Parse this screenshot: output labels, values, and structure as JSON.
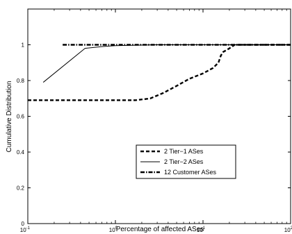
{
  "chart_data": {
    "type": "line",
    "xlabel": "Percentage of affected ASes",
    "ylabel": "Cumulative Distribution",
    "xscale": "log",
    "xlim": [
      0.1,
      100
    ],
    "ylim": [
      0,
      1.2
    ],
    "x_ticks": [
      {
        "value": 0.1,
        "base": "10",
        "exp": "-1"
      },
      {
        "value": 1,
        "base": "10",
        "exp": "0"
      },
      {
        "value": 10,
        "base": "10",
        "exp": "1"
      },
      {
        "value": 100,
        "base": "10",
        "exp": "2"
      }
    ],
    "y_ticks": [
      {
        "value": 0,
        "label": "0"
      },
      {
        "value": 0.2,
        "label": "0.2"
      },
      {
        "value": 0.4,
        "label": "0.4"
      },
      {
        "value": 0.6,
        "label": "0.6"
      },
      {
        "value": 0.8,
        "label": "0.8"
      },
      {
        "value": 1.0,
        "label": "1"
      }
    ],
    "grid": false,
    "legend_position": "lower-right",
    "series": [
      {
        "name": "2 Tier−1 ASes",
        "style": "dashed-thick",
        "color": "#000000",
        "x": [
          0.1,
          0.5,
          1.0,
          1.7,
          2.5,
          3.5,
          5.0,
          7.0,
          10.0,
          13.0,
          15.0,
          16.0,
          17.0,
          20.0,
          23.0,
          30.0,
          50.0,
          100.0
        ],
        "y": [
          0.69,
          0.69,
          0.69,
          0.69,
          0.7,
          0.73,
          0.77,
          0.81,
          0.84,
          0.87,
          0.9,
          0.94,
          0.96,
          0.98,
          1.0,
          1.0,
          1.0,
          1.0
        ]
      },
      {
        "name": "2 Tier−2 ASes",
        "style": "solid-thin",
        "color": "#000000",
        "x": [
          0.15,
          0.45,
          0.7,
          1.0,
          3.0,
          10.0,
          100.0
        ],
        "y": [
          0.79,
          0.98,
          0.99,
          0.995,
          1.0,
          1.0,
          1.0
        ]
      },
      {
        "name": "12 Customer ASes",
        "style": "dash-dot-thick",
        "color": "#000000",
        "x": [
          0.25,
          1.0,
          10.0,
          100.0
        ],
        "y": [
          1.0,
          1.0,
          1.0,
          1.0
        ]
      }
    ]
  }
}
